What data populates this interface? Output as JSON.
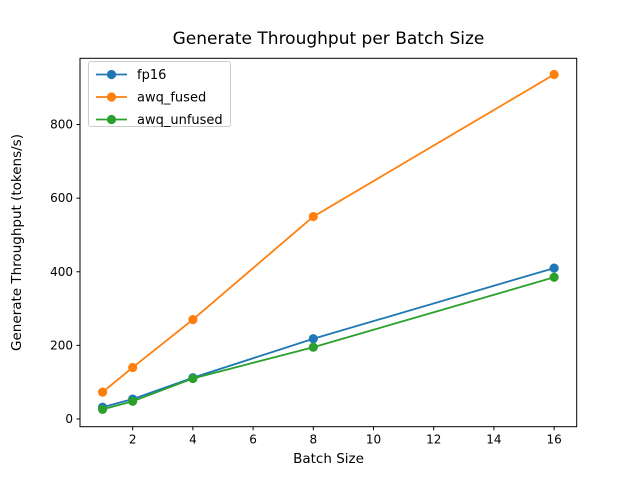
{
  "chart_data": {
    "type": "line",
    "title": "Generate Throughput per Batch Size",
    "xlabel": "Batch Size",
    "ylabel": "Generate Throughput (tokens/s)",
    "x": [
      1,
      2,
      4,
      8,
      16
    ],
    "series": [
      {
        "name": "fp16",
        "color": "#1f77b4",
        "values": [
          32,
          54,
          112,
          218,
          410
        ]
      },
      {
        "name": "awq_fused",
        "color": "#ff7f0e",
        "values": [
          73,
          140,
          270,
          550,
          936
        ]
      },
      {
        "name": "awq_unfused",
        "color": "#2ca02c",
        "values": [
          26,
          48,
          110,
          195,
          385
        ]
      }
    ],
    "xticks": [
      2,
      4,
      6,
      8,
      10,
      12,
      14,
      16
    ],
    "yticks": [
      0,
      200,
      400,
      600,
      800
    ],
    "xlim": [
      0.25,
      16.75
    ],
    "ylim": [
      -21,
      980
    ],
    "grid": false,
    "legend_position": "upper left",
    "marker": "o",
    "axis_color": "#000000",
    "legend_border_color": "#cccccc",
    "background_color": "#ffffff"
  }
}
